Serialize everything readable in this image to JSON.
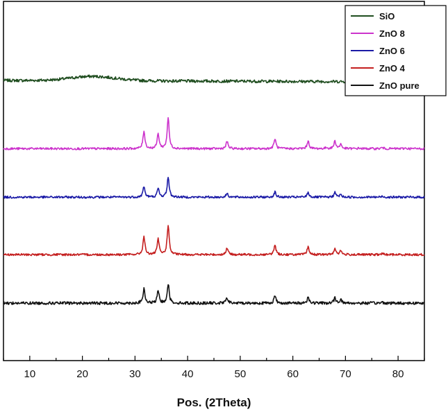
{
  "chart_data": {
    "type": "line",
    "title": "",
    "xlabel": "Pos. (2Theta)",
    "ylabel": "",
    "xlim": [
      5,
      85
    ],
    "xticks": [
      10,
      20,
      30,
      40,
      50,
      60,
      70,
      80
    ],
    "y_axis": "offset stacked intensities (arbitrary units, no tick labels)",
    "grid": false,
    "legend_position": "top-right",
    "series": [
      {
        "name": "SiO",
        "color": "#1f4d1f",
        "baseline": 0.78,
        "scale": 0.0,
        "noise": 0.004,
        "hump": {
          "center": 22,
          "width": 6,
          "height": 0.012
        },
        "slope": -0.004,
        "peaks": []
      },
      {
        "name": "ZnO 8",
        "color": "#cc33cc",
        "baseline": 0.59,
        "scale": 0.155,
        "noise": 0.003,
        "peaks": [
          {
            "x": 31.7,
            "h": 0.32
          },
          {
            "x": 34.4,
            "h": 0.27
          },
          {
            "x": 36.3,
            "h": 0.56
          },
          {
            "x": 47.5,
            "h": 0.13
          },
          {
            "x": 56.6,
            "h": 0.18
          },
          {
            "x": 62.9,
            "h": 0.14
          },
          {
            "x": 66.4,
            "h": 0.02
          },
          {
            "x": 68.0,
            "h": 0.14
          },
          {
            "x": 69.1,
            "h": 0.08
          },
          {
            "x": 72.6,
            "h": 0.01
          },
          {
            "x": 77.0,
            "h": 0.02
          },
          {
            "x": 81.4,
            "h": 0.01
          }
        ]
      },
      {
        "name": "ZnO 6",
        "color": "#1a1aa6",
        "baseline": 0.455,
        "scale": 0.12,
        "noise": 0.003,
        "peaks": [
          {
            "x": 31.7,
            "h": 0.25
          },
          {
            "x": 34.4,
            "h": 0.2
          },
          {
            "x": 36.3,
            "h": 0.47
          },
          {
            "x": 47.5,
            "h": 0.09
          },
          {
            "x": 56.6,
            "h": 0.12
          },
          {
            "x": 62.9,
            "h": 0.11
          },
          {
            "x": 68.0,
            "h": 0.11
          },
          {
            "x": 69.1,
            "h": 0.06
          },
          {
            "x": 77.0,
            "h": 0.02
          }
        ]
      },
      {
        "name": "ZnO 4",
        "color": "#c41e1e",
        "baseline": 0.295,
        "scale": 0.16,
        "noise": 0.003,
        "peaks": [
          {
            "x": 31.7,
            "h": 0.32
          },
          {
            "x": 34.4,
            "h": 0.27
          },
          {
            "x": 36.3,
            "h": 0.52
          },
          {
            "x": 47.5,
            "h": 0.12
          },
          {
            "x": 56.6,
            "h": 0.17
          },
          {
            "x": 62.9,
            "h": 0.14
          },
          {
            "x": 68.0,
            "h": 0.11
          },
          {
            "x": 69.1,
            "h": 0.07
          },
          {
            "x": 77.0,
            "h": 0.02
          }
        ]
      },
      {
        "name": "ZnO pure",
        "color": "#111111",
        "baseline": 0.16,
        "scale": 0.13,
        "noise": 0.004,
        "peaks": [
          {
            "x": 31.7,
            "h": 0.3
          },
          {
            "x": 34.4,
            "h": 0.26
          },
          {
            "x": 36.3,
            "h": 0.42
          },
          {
            "x": 47.5,
            "h": 0.12
          },
          {
            "x": 56.6,
            "h": 0.16
          },
          {
            "x": 62.9,
            "h": 0.13
          },
          {
            "x": 68.0,
            "h": 0.11
          },
          {
            "x": 69.1,
            "h": 0.08
          },
          {
            "x": 77.0,
            "h": 0.02
          }
        ]
      }
    ]
  }
}
